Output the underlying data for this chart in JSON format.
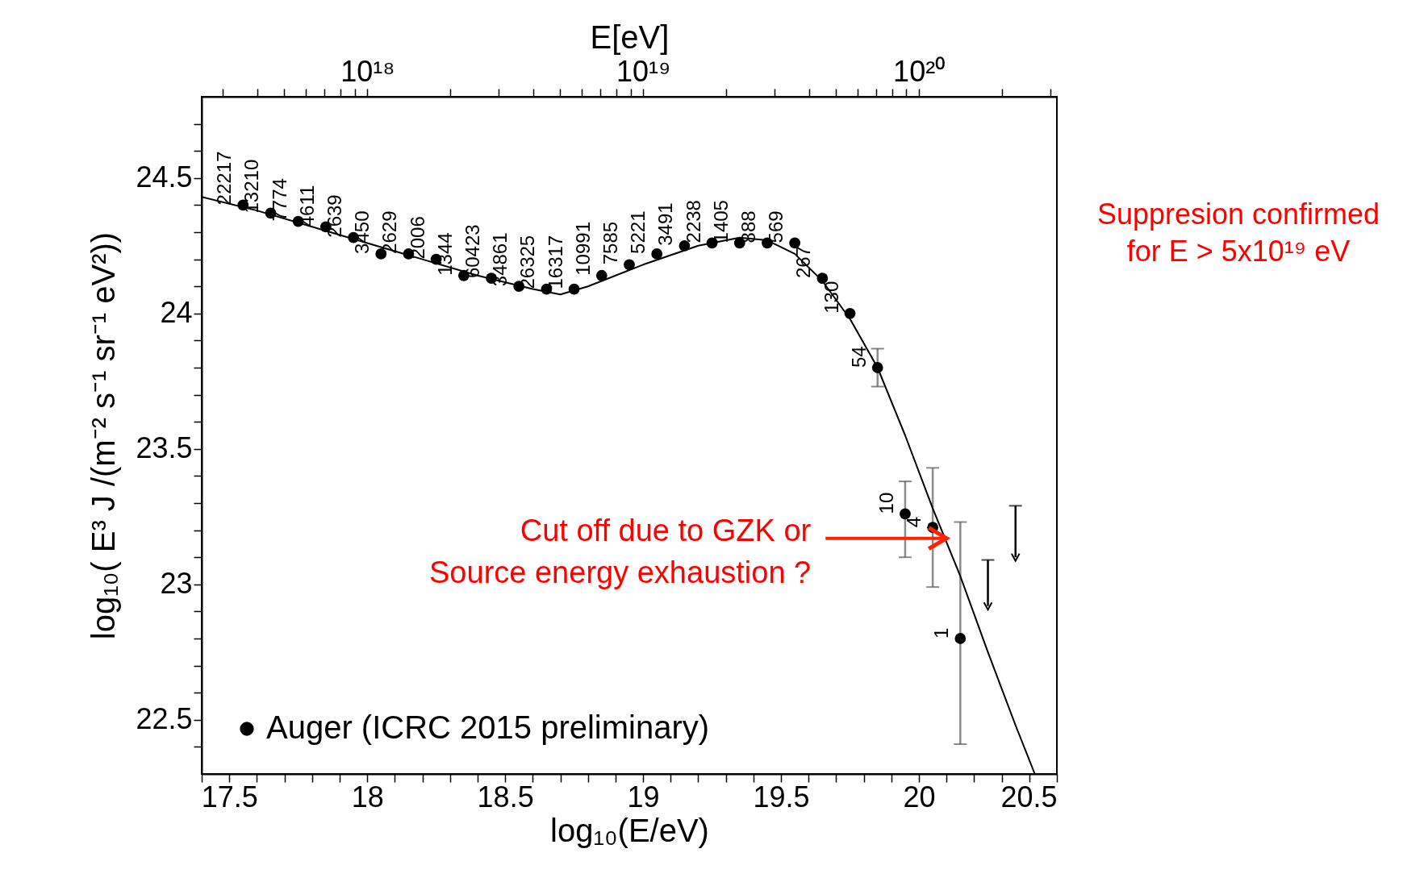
{
  "chart_data": {
    "type": "scatter",
    "xlabel": "log₁₀(E/eV)",
    "ylabel": "log₁₀( E³ J /(m⁻²  s⁻¹ sr⁻¹ eV²))",
    "x2label": "E[eV]",
    "xlim": [
      17.4,
      20.5
    ],
    "ylim": [
      22.3,
      24.8
    ],
    "xticks": [
      {
        "value": 17.4,
        "label": null
      },
      17.5,
      {
        "value": 17.6,
        "label": null
      },
      {
        "value": 17.7,
        "label": null
      },
      {
        "value": 17.8,
        "label": null
      },
      {
        "value": 17.9,
        "label": null
      },
      18,
      {
        "value": 18.1,
        "label": null
      },
      {
        "value": 18.2,
        "label": null
      },
      {
        "value": 18.3,
        "label": null
      },
      {
        "value": 18.4,
        "label": null
      },
      18.5,
      {
        "value": 18.6,
        "label": null
      },
      {
        "value": 18.7,
        "label": null
      },
      {
        "value": 18.8,
        "label": null
      },
      {
        "value": 18.9,
        "label": null
      },
      19,
      {
        "value": 19.1,
        "label": null
      },
      {
        "value": 19.2,
        "label": null
      },
      {
        "value": 19.3,
        "label": null
      },
      {
        "value": 19.4,
        "label": null
      },
      19.5,
      {
        "value": 19.6,
        "label": null
      },
      {
        "value": 19.7,
        "label": null
      },
      {
        "value": 19.8,
        "label": null
      },
      {
        "value": 19.9,
        "label": null
      },
      20,
      {
        "value": 20.1,
        "label": null
      },
      {
        "value": 20.2,
        "label": null
      },
      {
        "value": 20.3,
        "label": null
      },
      {
        "value": 20.4,
        "label": null
      },
      20.5
    ],
    "yticks": [
      {
        "value": 22.4,
        "label": null
      },
      22.5,
      {
        "value": 22.6,
        "label": null
      },
      {
        "value": 22.7,
        "label": null
      },
      {
        "value": 22.8,
        "label": null
      },
      {
        "value": 22.9,
        "label": null
      },
      23,
      {
        "value": 23.1,
        "label": null
      },
      {
        "value": 23.2,
        "label": null
      },
      {
        "value": 23.3,
        "label": null
      },
      {
        "value": 23.4,
        "label": null
      },
      23.5,
      {
        "value": 23.6,
        "label": null
      },
      {
        "value": 23.7,
        "label": null
      },
      {
        "value": 23.8,
        "label": null
      },
      {
        "value": 23.9,
        "label": null
      },
      24,
      {
        "value": 24.1,
        "label": null
      },
      {
        "value": 24.2,
        "label": null
      },
      {
        "value": 24.3,
        "label": null
      },
      {
        "value": 24.4,
        "label": null
      },
      24.5,
      {
        "value": 24.6,
        "label": null
      },
      {
        "value": 24.7,
        "label": null
      }
    ],
    "x2lim": [
      2.51e+17,
      3.16e+20
    ],
    "x2ticks": [
      {
        "value": 3e+17,
        "label": null
      },
      {
        "value": 4e+17,
        "label": null
      },
      {
        "value": 5e+17,
        "label": null
      },
      {
        "value": 6e+17,
        "label": null
      },
      {
        "value": 7e+17,
        "label": null
      },
      {
        "value": 8e+17,
        "label": null
      },
      {
        "value": 9e+17,
        "label": null
      },
      {
        "value": 1e+18,
        "label": "10¹⁸"
      },
      {
        "value": 2e+18,
        "label": null
      },
      {
        "value": 3e+18,
        "label": null
      },
      {
        "value": 4e+18,
        "label": null
      },
      {
        "value": 5e+18,
        "label": null
      },
      {
        "value": 6e+18,
        "label": null
      },
      {
        "value": 7e+18,
        "label": null
      },
      {
        "value": 8e+18,
        "label": null
      },
      {
        "value": 9e+18,
        "label": null
      },
      {
        "value": 1e+19,
        "label": "10¹⁹"
      },
      {
        "value": 2e+19,
        "label": null
      },
      {
        "value": 3e+19,
        "label": null
      },
      {
        "value": 4e+19,
        "label": null
      },
      {
        "value": 5e+19,
        "label": null
      },
      {
        "value": 6e+19,
        "label": null
      },
      {
        "value": 7e+19,
        "label": null
      },
      {
        "value": 8e+19,
        "label": null
      },
      {
        "value": 9e+19,
        "label": null
      },
      {
        "value": 1e+20,
        "label": "10²⁰"
      },
      {
        "value": 2e+20,
        "label": null
      },
      {
        "value": 3e+20,
        "label": null
      }
    ],
    "legend": "bottom left",
    "log": "x2",
    "series": [
      {
        "name": "Auger (ICRC 2015 preliminary)",
        "marker": "circle",
        "color": "#000000",
        "x": [
          17.55,
          17.65,
          17.75,
          17.85,
          17.95,
          18.05,
          18.15,
          18.25,
          18.35,
          18.45,
          18.55,
          18.65,
          18.75,
          18.85,
          18.95,
          19.05,
          19.15,
          19.25,
          19.35,
          19.45,
          19.55,
          19.65,
          19.75,
          19.85,
          19.95,
          20.05,
          20.15
        ],
        "values": [
          24.4,
          24.37,
          24.34,
          24.32,
          24.28,
          24.22,
          24.22,
          24.2,
          24.14,
          24.13,
          24.1,
          24.09,
          24.09,
          24.14,
          24.18,
          24.22,
          24.25,
          24.26,
          24.26,
          24.26,
          24.26,
          24.13,
          24.0,
          23.8,
          23.26,
          23.21,
          22.8
        ],
        "errors": [
          null,
          null,
          null,
          null,
          null,
          null,
          null,
          null,
          null,
          null,
          null,
          null,
          null,
          null,
          null,
          null,
          null,
          null,
          null,
          null,
          null,
          null,
          null,
          [
            23.73,
            23.87
          ],
          [
            23.1,
            23.38
          ],
          [
            22.99,
            23.43
          ],
          [
            22.41,
            23.23
          ]
        ]
      },
      {
        "marker": "cross",
        "color": "#000000",
        "x": [
          20.25,
          20.35
        ],
        "values": [
          22.92,
          23.1
        ],
        "errors": [
          [
            22.92,
            23.09
          ],
          [
            23.1,
            23.29
          ]
        ]
      },
      {
        "type": "line",
        "marker": "none",
        "line_style": "solid",
        "color": "#000000",
        "x": [
          17.4,
          17.6,
          17.8,
          18.0,
          18.2,
          18.4,
          18.6,
          18.7,
          18.8,
          19.0,
          19.2,
          19.35,
          19.45,
          19.55,
          19.65,
          19.75,
          19.85,
          19.95,
          20.05,
          20.15,
          20.25,
          20.35,
          20.42
        ],
        "values": [
          24.43,
          24.38,
          24.32,
          24.26,
          24.2,
          24.14,
          24.09,
          24.07,
          24.1,
          24.18,
          24.25,
          24.28,
          24.27,
          24.22,
          24.12,
          23.98,
          23.8,
          23.55,
          23.28,
          23.03,
          22.75,
          22.48,
          22.3
        ]
      }
    ],
    "annotations": [
      "Suppresion confirmed\nfor E > 5x10¹⁹ eV",
      {
        "text": "Cut off due to  GZK  or\nSource energy exhaustion ?",
        "x": 20.1,
        "y": 23.17
      },
      {
        "text": "22217",
        "x": 17.55,
        "y": 24.4
      },
      {
        "text": "13210",
        "x": 17.65,
        "y": 24.37
      },
      {
        "text": "7774",
        "x": 17.75,
        "y": 24.34
      },
      {
        "text": "4611",
        "x": 17.85,
        "y": 24.32
      },
      {
        "text": "2639",
        "x": 17.95,
        "y": 24.28
      },
      {
        "text": "3450",
        "x": 18.05,
        "y": 24.22
      },
      {
        "text": "2629",
        "x": 18.15,
        "y": 24.22
      },
      {
        "text": "2006",
        "x": 18.25,
        "y": 24.2
      },
      {
        "text": "1344",
        "x": 18.35,
        "y": 24.14
      },
      {
        "text": "60423",
        "x": 18.45,
        "y": 24.13
      },
      {
        "text": "34861",
        "x": 18.55,
        "y": 24.1
      },
      {
        "text": "26325",
        "x": 18.65,
        "y": 24.09
      },
      {
        "text": "16317",
        "x": 18.75,
        "y": 24.09
      },
      {
        "text": "10991",
        "x": 18.85,
        "y": 24.14
      },
      {
        "text": "7585",
        "x": 18.95,
        "y": 24.18
      },
      {
        "text": "5221",
        "x": 19.05,
        "y": 24.22
      },
      {
        "text": "3491",
        "x": 19.15,
        "y": 24.25
      },
      {
        "text": "2238",
        "x": 19.25,
        "y": 24.26
      },
      {
        "text": "1405",
        "x": 19.35,
        "y": 24.26
      },
      {
        "text": "888",
        "x": 19.45,
        "y": 24.26
      },
      {
        "text": "569",
        "x": 19.55,
        "y": 24.26
      },
      {
        "text": "267",
        "x": 19.65,
        "y": 24.13
      },
      {
        "text": "130",
        "x": 19.75,
        "y": 24.0
      },
      {
        "text": "54",
        "x": 19.85,
        "y": 23.8
      },
      {
        "text": "10",
        "x": 19.95,
        "y": 23.26
      },
      {
        "text": "4",
        "x": 20.05,
        "y": 23.21
      },
      {
        "text": "1",
        "x": 20.15,
        "y": 22.8
      }
    ]
  }
}
